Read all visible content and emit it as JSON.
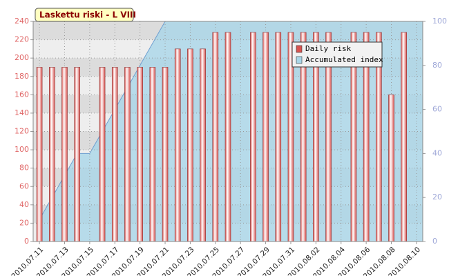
{
  "chart_data": {
    "type": "bar",
    "title": "Laskettu riski - L VIII",
    "categories": [
      "2010.07.11",
      null,
      "2010.07.13",
      null,
      "2010.07.15",
      null,
      "2010.07.17",
      null,
      "2010.07.19",
      null,
      "2010.07.21",
      null,
      "2010.07.23",
      null,
      "2010.07.25",
      null,
      "2010.07.27",
      null,
      "2010.07.29",
      null,
      "2010.07.31",
      null,
      "2010.08.02",
      null,
      "2010.08.04",
      null,
      "2010.08.06",
      null,
      "2010.08.08",
      null,
      "2010.08.10"
    ],
    "series": [
      {
        "name": "Daily risk",
        "color": "#d9534f",
        "values": [
          190,
          190,
          190,
          190,
          null,
          190,
          190,
          190,
          190,
          190,
          190,
          210,
          210,
          210,
          228,
          228,
          null,
          228,
          228,
          228,
          228,
          228,
          228,
          228,
          null,
          228,
          228,
          228,
          160,
          228,
          null
        ]
      },
      {
        "name": "Accumulated index",
        "color": "#a9d6e8",
        "type": "area",
        "axis": "y2",
        "values": [
          10,
          20,
          30,
          40,
          40,
          50,
          60,
          70,
          80,
          90,
          100,
          100,
          100,
          100,
          100,
          100,
          100,
          100,
          100,
          100,
          100,
          100,
          100,
          100,
          100,
          100,
          100,
          100,
          100,
          100,
          100
        ]
      }
    ],
    "ylim": [
      0,
      240
    ],
    "yticks": [
      0,
      20,
      40,
      60,
      80,
      100,
      120,
      140,
      160,
      180,
      200,
      220,
      240
    ],
    "y2lim": [
      0,
      100
    ],
    "y2ticks": [
      0,
      20,
      40,
      60,
      80,
      100
    ],
    "grid": true,
    "legend": "upper right"
  }
}
